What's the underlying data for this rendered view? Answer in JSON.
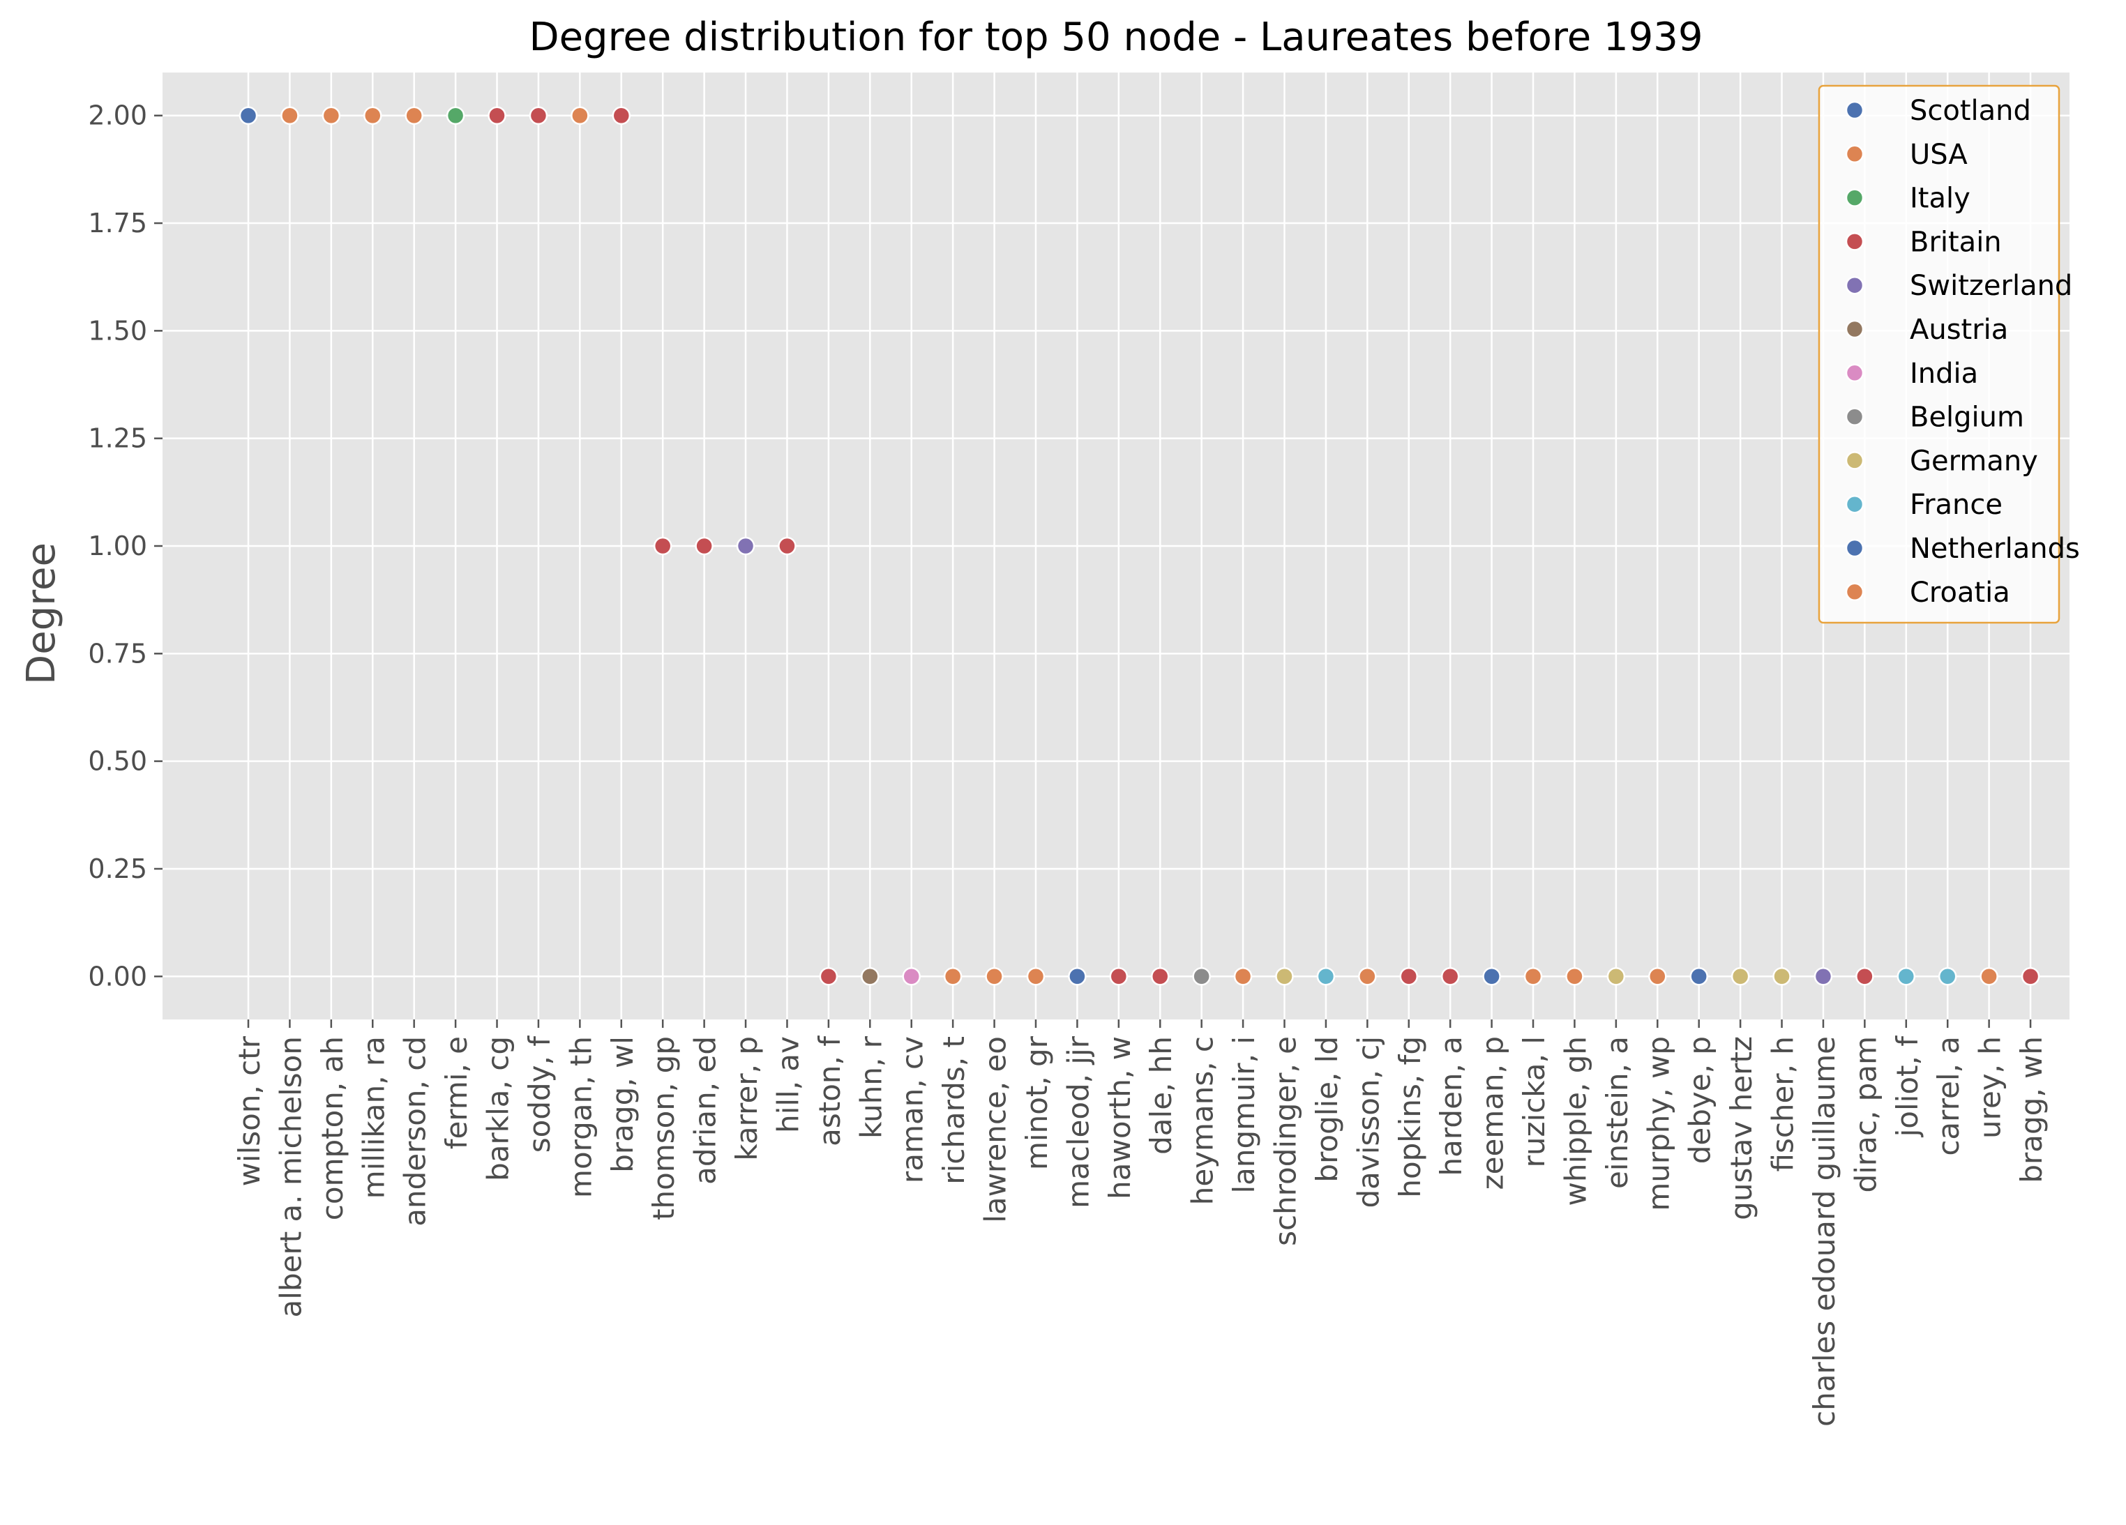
{
  "chart_data": {
    "type": "scatter",
    "title": "Degree distribution for top 50 node - Laureates before 1939",
    "xlabel": "",
    "ylabel": "Degree",
    "ylim": [
      -0.1,
      2.1
    ],
    "yticks": [
      "0.00",
      "0.25",
      "0.50",
      "0.75",
      "1.00",
      "1.25",
      "1.50",
      "1.75",
      "2.00"
    ],
    "grid": true,
    "legend_position": "top-right",
    "categories": [
      "wilson, ctr",
      "albert a. michelson",
      "compton, ah",
      "millikan, ra",
      "anderson, cd",
      "fermi, e",
      "barkla, cg",
      "soddy, f",
      "morgan, th",
      "bragg, wl",
      "thomson, gp",
      "adrian, ed",
      "karrer, p",
      "hill, av",
      "aston, f",
      "kuhn, r",
      "raman, cv",
      "richards, t",
      "lawrence, eo",
      "minot, gr",
      "macleod, jjr",
      "haworth, w",
      "dale, hh",
      "heymans, c",
      "langmuir, i",
      "schrodinger, e",
      "broglie, ld",
      "davisson, cj",
      "hopkins, fg",
      "harden, a",
      "zeeman, p",
      "ruzicka, l",
      "whipple, gh",
      "einstein, a",
      "murphy, wp",
      "debye, p",
      "gustav hertz",
      "fischer, h",
      "charles edouard guillaume",
      "dirac, pam",
      "joliot, f",
      "carrel, a",
      "urey, h",
      "bragg, wh"
    ],
    "values": [
      2,
      2,
      2,
      2,
      2,
      2,
      2,
      2,
      2,
      2,
      1,
      1,
      1,
      1,
      0,
      0,
      0,
      0,
      0,
      0,
      0,
      0,
      0,
      0,
      0,
      0,
      0,
      0,
      0,
      0,
      0,
      0,
      0,
      0,
      0,
      0,
      0,
      0,
      0,
      0,
      0,
      0,
      0,
      0
    ],
    "point_country": [
      "Scotland",
      "USA",
      "USA",
      "USA",
      "USA",
      "Italy",
      "Britain",
      "Britain",
      "USA",
      "Britain",
      "Britain",
      "Britain",
      "Switzerland",
      "Britain",
      "Britain",
      "Austria",
      "India",
      "USA",
      "USA",
      "USA",
      "Scotland",
      "Britain",
      "Britain",
      "Belgium",
      "USA",
      "Germany",
      "France",
      "USA",
      "Britain",
      "Britain",
      "Netherlands",
      "Croatia",
      "USA",
      "Germany",
      "USA",
      "Netherlands",
      "Germany",
      "Germany",
      "Switzerland",
      "Britain",
      "France",
      "France",
      "USA",
      "Britain"
    ],
    "series": [
      {
        "name": "Scotland",
        "color": "#4c72b0"
      },
      {
        "name": "USA",
        "color": "#dd8452"
      },
      {
        "name": "Italy",
        "color": "#55a868"
      },
      {
        "name": "Britain",
        "color": "#c44e52"
      },
      {
        "name": "Switzerland",
        "color": "#8172b3"
      },
      {
        "name": "Austria",
        "color": "#937860"
      },
      {
        "name": "India",
        "color": "#da8bc3"
      },
      {
        "name": "Belgium",
        "color": "#8c8c8c"
      },
      {
        "name": "Germany",
        "color": "#ccb974"
      },
      {
        "name": "France",
        "color": "#64b5cd"
      },
      {
        "name": "Netherlands",
        "color": "#4c72b0"
      },
      {
        "name": "Croatia",
        "color": "#dd8452"
      }
    ],
    "colors": {
      "plot_background": "#e5e5e5",
      "grid": "#ffffff",
      "legend_border": "#e8a33d"
    }
  }
}
